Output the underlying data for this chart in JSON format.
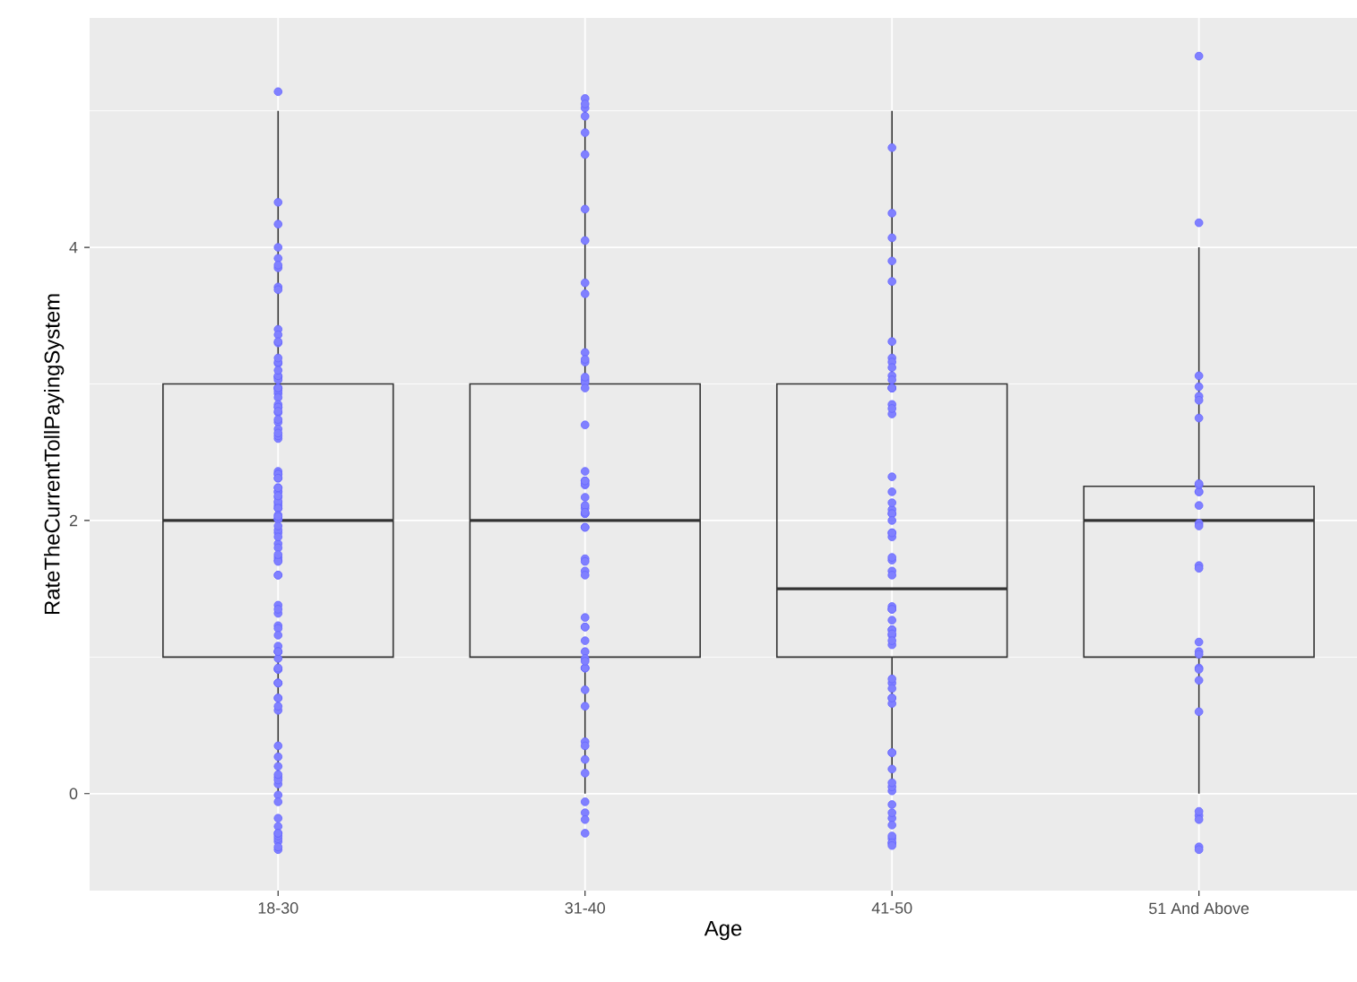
{
  "chart_data": {
    "type": "box",
    "xlabel": "Age",
    "ylabel": "RateTheCurrentTollPayingSystem",
    "categories": [
      "18-30",
      "31-40",
      "41-50",
      "51 And Above"
    ],
    "ylim": [
      -0.71,
      5.68
    ],
    "yticks": [
      0,
      2,
      4
    ],
    "grid": true,
    "boxes": [
      {
        "low": 0,
        "q1": 1,
        "median": 2,
        "q3": 3,
        "high": 5
      },
      {
        "low": 0,
        "q1": 1,
        "median": 2,
        "q3": 3,
        "high": 5
      },
      {
        "low": 0,
        "q1": 1,
        "median": 1.5,
        "q3": 3,
        "high": 5
      },
      {
        "low": 0,
        "q1": 1,
        "median": 2,
        "q3": 2.25,
        "high": 4
      }
    ],
    "series": [
      {
        "type": "scatter",
        "color": "#8080ff",
        "x": [
          "18-30",
          "18-30",
          "18-30",
          "18-30",
          "18-30",
          "18-30",
          "18-30",
          "18-30",
          "18-30",
          "18-30",
          "18-30",
          "18-30",
          "18-30",
          "18-30",
          "18-30",
          "18-30",
          "18-30",
          "18-30",
          "18-30",
          "18-30",
          "18-30",
          "18-30",
          "18-30",
          "18-30",
          "18-30",
          "18-30",
          "18-30",
          "18-30",
          "18-30",
          "18-30",
          "18-30",
          "18-30",
          "18-30",
          "18-30",
          "18-30",
          "18-30",
          "18-30",
          "18-30",
          "18-30",
          "18-30",
          "18-30",
          "18-30",
          "18-30",
          "18-30",
          "18-30",
          "18-30",
          "18-30",
          "18-30",
          "18-30",
          "18-30",
          "18-30",
          "18-30",
          "18-30",
          "18-30",
          "18-30",
          "18-30",
          "18-30",
          "18-30",
          "18-30",
          "18-30",
          "18-30",
          "18-30",
          "18-30",
          "18-30",
          "18-30",
          "18-30",
          "18-30",
          "18-30",
          "18-30",
          "18-30",
          "18-30",
          "18-30",
          "18-30",
          "18-30",
          "18-30",
          "18-30",
          "18-30",
          "18-30",
          "18-30",
          "18-30",
          "18-30",
          "18-30",
          "18-30",
          "18-30",
          "18-30",
          "18-30",
          "18-30",
          "18-30",
          "18-30",
          "18-30",
          "18-30",
          "18-30",
          "18-30",
          "18-30",
          "18-30",
          "18-30",
          "18-30",
          "18-30",
          "18-30",
          "18-30",
          "18-30",
          "18-30",
          "18-30",
          "18-30",
          "18-30",
          "18-30",
          "18-30",
          "18-30",
          "18-30",
          "18-30",
          "31-40",
          "31-40",
          "31-40",
          "31-40",
          "31-40",
          "31-40",
          "31-40",
          "31-40",
          "31-40",
          "31-40",
          "31-40",
          "31-40",
          "31-40",
          "31-40",
          "31-40",
          "31-40",
          "31-40",
          "31-40",
          "31-40",
          "31-40",
          "31-40",
          "31-40",
          "31-40",
          "31-40",
          "31-40",
          "31-40",
          "31-40",
          "31-40",
          "31-40",
          "31-40",
          "31-40",
          "31-40",
          "31-40",
          "31-40",
          "31-40",
          "31-40",
          "31-40",
          "31-40",
          "31-40",
          "31-40",
          "31-40",
          "31-40",
          "31-40",
          "31-40",
          "31-40",
          "31-40",
          "31-40",
          "31-40",
          "31-40",
          "31-40",
          "31-40",
          "31-40",
          "31-40",
          "31-40",
          "31-40",
          "41-50",
          "41-50",
          "41-50",
          "41-50",
          "41-50",
          "41-50",
          "41-50",
          "41-50",
          "41-50",
          "41-50",
          "41-50",
          "41-50",
          "41-50",
          "41-50",
          "41-50",
          "41-50",
          "41-50",
          "41-50",
          "41-50",
          "41-50",
          "41-50",
          "41-50",
          "41-50",
          "41-50",
          "41-50",
          "41-50",
          "41-50",
          "41-50",
          "41-50",
          "41-50",
          "41-50",
          "41-50",
          "41-50",
          "41-50",
          "41-50",
          "41-50",
          "41-50",
          "41-50",
          "41-50",
          "41-50",
          "41-50",
          "41-50",
          "41-50",
          "41-50",
          "41-50",
          "41-50",
          "41-50",
          "41-50",
          "41-50",
          "41-50",
          "41-50",
          "41-50",
          "41-50",
          "41-50",
          "41-50",
          "41-50",
          "41-50",
          "41-50",
          "41-50",
          "41-50",
          "41-50",
          "41-50",
          "51 And Above",
          "51 And Above",
          "51 And Above",
          "51 And Above",
          "51 And Above",
          "51 And Above",
          "51 And Above",
          "51 And Above",
          "51 And Above",
          "51 And Above",
          "51 And Above",
          "51 And Above",
          "51 And Above",
          "51 And Above",
          "51 And Above",
          "51 And Above",
          "51 And Above",
          "51 And Above",
          "51 And Above",
          "51 And Above",
          "51 And Above",
          "51 And Above",
          "51 And Above",
          "51 And Above",
          "51 And Above",
          "51 And Above",
          "51 And Above",
          "51 And Above"
        ],
        "values": [
          5.14,
          4.33,
          4.0,
          4.17,
          3.92,
          3.85,
          3.87,
          3.71,
          3.69,
          3.4,
          3.36,
          3.3,
          3.31,
          3.15,
          3.16,
          3.19,
          3.05,
          3.05,
          3.03,
          3.06,
          3.1,
          2.93,
          2.95,
          2.97,
          2.97,
          2.97,
          2.9,
          2.85,
          2.83,
          2.83,
          2.79,
          2.72,
          2.74,
          2.8,
          2.67,
          2.6,
          2.62,
          2.64,
          2.36,
          2.34,
          2.31,
          2.34,
          2.31,
          2.21,
          2.21,
          2.24,
          2.24,
          2.17,
          2.11,
          2.13,
          2.09,
          2.14,
          2.09,
          2.18,
          2.01,
          2.01,
          2.04,
          2.01,
          2.03,
          1.91,
          1.93,
          1.96,
          1.83,
          1.88,
          1.8,
          1.73,
          1.71,
          1.7,
          1.75,
          1.6,
          1.6,
          1.32,
          1.38,
          1.35,
          1.23,
          1.21,
          1.16,
          1.08,
          1.04,
          0.99,
          1.04,
          1.04,
          0.91,
          0.91,
          0.92,
          0.81,
          0.81,
          0.7,
          0.7,
          0.81,
          0.61,
          0.64,
          0.35,
          0.27,
          0.12,
          0.07,
          0.1,
          -0.01,
          0.14,
          0.2,
          -0.06,
          -0.18,
          -0.24,
          -0.35,
          -0.41,
          -0.33,
          -0.31,
          -0.29,
          -0.29,
          -0.39,
          5.02,
          5.09,
          5.05,
          4.96,
          4.84,
          4.68,
          4.28,
          4.05,
          3.74,
          3.66,
          3.23,
          3.16,
          3.18,
          3.03,
          3.01,
          3.05,
          2.97,
          2.7,
          2.36,
          2.26,
          2.27,
          2.29,
          2.29,
          2.17,
          2.09,
          2.05,
          2.05,
          2.11,
          2.06,
          1.95,
          1.95,
          1.72,
          1.7,
          1.63,
          1.6,
          1.22,
          1.22,
          1.29,
          1.12,
          1.04,
          0.99,
          0.92,
          0.92,
          0.92,
          0.97,
          0.76,
          0.64,
          0.38,
          0.35,
          0.25,
          0.15,
          -0.06,
          -0.14,
          -0.19,
          -0.29,
          4.73,
          4.25,
          4.07,
          3.9,
          3.75,
          3.31,
          3.19,
          3.16,
          3.12,
          3.06,
          3.03,
          2.97,
          2.97,
          2.97,
          2.85,
          2.78,
          2.82,
          2.32,
          2.21,
          2.08,
          2.05,
          2.05,
          2.13,
          2.0,
          1.91,
          1.88,
          1.91,
          1.71,
          1.63,
          1.6,
          1.73,
          1.37,
          1.35,
          1.35,
          1.2,
          1.2,
          1.27,
          1.16,
          1.09,
          1.17,
          1.12,
          0.81,
          0.7,
          0.77,
          0.66,
          0.7,
          0.84,
          0.3,
          0.3,
          0.18,
          0.02,
          0.05,
          0.08,
          -0.08,
          -0.18,
          -0.14,
          -0.23,
          -0.33,
          -0.36,
          -0.31,
          -0.36,
          -0.38,
          5.4,
          4.18,
          3.06,
          2.98,
          2.91,
          2.88,
          2.75,
          2.21,
          2.21,
          2.26,
          2.27,
          2.11,
          1.98,
          1.96,
          1.67,
          1.65,
          1.04,
          1.02,
          1.11,
          0.92,
          0.83,
          0.91,
          0.6,
          -0.16,
          -0.13,
          -0.19,
          -0.39,
          -0.41
        ]
      }
    ]
  }
}
